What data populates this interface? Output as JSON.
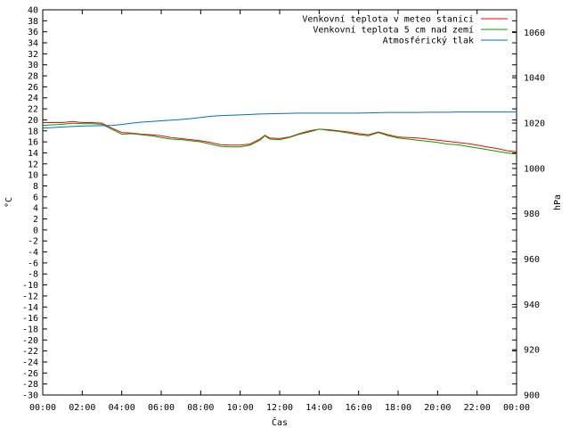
{
  "chart_data": {
    "type": "line",
    "title": "",
    "xlabel": "Čas",
    "ylabel": "°C",
    "y2label": "hPa",
    "xlim": [
      0,
      24
    ],
    "ylim": [
      -30,
      40
    ],
    "y2lim": [
      900,
      1070
    ],
    "grid": false,
    "legend_position": "top-right",
    "x_ticks": [
      "00:00",
      "02:00",
      "04:00",
      "06:00",
      "08:00",
      "10:00",
      "12:00",
      "14:00",
      "16:00",
      "18:00",
      "20:00",
      "22:00",
      "00:00"
    ],
    "y_ticks": [
      40,
      38,
      36,
      34,
      32,
      30,
      28,
      26,
      24,
      22,
      20,
      18,
      16,
      14,
      12,
      10,
      8,
      6,
      4,
      2,
      0,
      -2,
      -4,
      -6,
      -8,
      -10,
      -12,
      -14,
      -16,
      -18,
      -20,
      -22,
      -24,
      -26,
      -28,
      -30
    ],
    "y2_ticks": [
      1060,
      1040,
      1020,
      1000,
      980,
      960,
      940,
      920,
      900
    ],
    "series": [
      {
        "name": "Venkovní teplota v meteo stanici",
        "axis": "left",
        "color": "#ff0000",
        "x": [
          0,
          0.5,
          1,
          1.5,
          2,
          2.5,
          3,
          3.5,
          4,
          4.5,
          5,
          5.5,
          6,
          6.5,
          7,
          7.5,
          8,
          8.5,
          9,
          9.5,
          10,
          10.5,
          11,
          11.25,
          11.5,
          12,
          12.5,
          13,
          13.5,
          14,
          14.5,
          15,
          15.5,
          16,
          16.5,
          17,
          17.5,
          18,
          18.5,
          19,
          19.5,
          20,
          20.5,
          21,
          21.5,
          22,
          22.5,
          23,
          23.5,
          24
        ],
        "values": [
          19.5,
          19.5,
          19.5,
          19.7,
          19.5,
          19.5,
          19.4,
          18.5,
          17.7,
          17.6,
          17.4,
          17.3,
          17.1,
          16.8,
          16.6,
          16.4,
          16.2,
          15.9,
          15.5,
          15.4,
          15.4,
          15.6,
          16.5,
          17.2,
          16.7,
          16.6,
          16.9,
          17.5,
          18.0,
          18.3,
          18.2,
          18.0,
          17.8,
          17.5,
          17.3,
          17.8,
          17.3,
          16.9,
          16.8,
          16.7,
          16.5,
          16.3,
          16.1,
          15.9,
          15.7,
          15.4,
          15.1,
          14.8,
          14.4,
          14.2
        ]
      },
      {
        "name": "Venkovní teplota 5 cm nad zemí",
        "axis": "left",
        "color": "#00a000",
        "x": [
          0,
          0.5,
          1,
          1.5,
          2,
          2.5,
          3,
          3.5,
          4,
          4.5,
          5,
          5.5,
          6,
          6.5,
          7,
          7.5,
          8,
          8.5,
          9,
          9.5,
          10,
          10.5,
          11,
          11.25,
          11.5,
          12,
          12.5,
          13,
          13.5,
          14,
          14.5,
          15,
          15.5,
          16,
          16.5,
          17,
          17.5,
          18,
          18.5,
          19,
          19.5,
          20,
          20.5,
          21,
          21.5,
          22,
          22.5,
          23,
          23.5,
          24
        ],
        "values": [
          19.0,
          19.1,
          19.2,
          19.4,
          19.3,
          19.3,
          19.2,
          18.3,
          17.4,
          17.5,
          17.3,
          17.1,
          16.8,
          16.5,
          16.4,
          16.2,
          16.0,
          15.6,
          15.2,
          15.1,
          15.1,
          15.4,
          16.3,
          17.1,
          16.5,
          16.4,
          16.8,
          17.4,
          17.8,
          18.3,
          18.1,
          17.9,
          17.6,
          17.3,
          17.1,
          17.7,
          17.1,
          16.7,
          16.5,
          16.3,
          16.1,
          15.9,
          15.6,
          15.5,
          15.2,
          14.9,
          14.6,
          14.3,
          14.0,
          13.8
        ]
      },
      {
        "name": "Atmosférický tlak",
        "axis": "right",
        "color": "#0070c0",
        "x": [
          0,
          0.5,
          1,
          1.5,
          2,
          2.5,
          3,
          3.5,
          4,
          4.5,
          5,
          5.5,
          6,
          6.5,
          7,
          7.5,
          8,
          8.5,
          9,
          9.5,
          10,
          10.5,
          11,
          11.5,
          12,
          12.5,
          13,
          13.5,
          14,
          14.5,
          15,
          15.5,
          16,
          16.5,
          17,
          17.5,
          18,
          18.5,
          19,
          19.5,
          20,
          20.5,
          21,
          21.5,
          22,
          22.5,
          23,
          23.5,
          24
        ],
        "values": [
          1017.8,
          1018.0,
          1018.3,
          1018.5,
          1018.7,
          1018.8,
          1018.9,
          1019.0,
          1019.4,
          1020.0,
          1020.4,
          1020.7,
          1021.0,
          1021.3,
          1021.6,
          1022.0,
          1022.5,
          1023.0,
          1023.3,
          1023.5,
          1023.6,
          1023.8,
          1024.0,
          1024.1,
          1024.2,
          1024.3,
          1024.4,
          1024.4,
          1024.4,
          1024.4,
          1024.4,
          1024.4,
          1024.4,
          1024.5,
          1024.6,
          1024.7,
          1024.7,
          1024.7,
          1024.7,
          1024.8,
          1024.8,
          1024.8,
          1024.9,
          1024.9,
          1024.9,
          1024.9,
          1024.9,
          1024.9,
          1024.9
        ]
      }
    ]
  }
}
